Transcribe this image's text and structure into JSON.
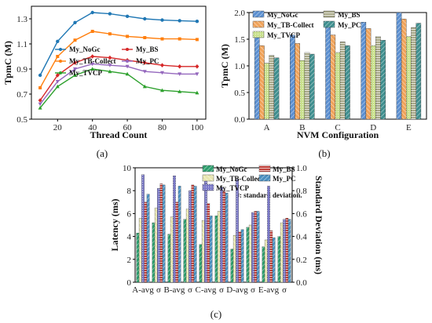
{
  "chart_data": [
    {
      "id": "a",
      "type": "line",
      "caption": "(a)",
      "xlabel": "Thread Count",
      "ylabel": "TpmC (M)",
      "ylim": [
        0.5,
        1.4
      ],
      "yticks": [
        "0.5",
        "0.7",
        "0.9",
        "1.1",
        "1.3"
      ],
      "xticks": [
        "20",
        "40",
        "60",
        "80",
        "100"
      ],
      "x": [
        10,
        20,
        30,
        40,
        50,
        60,
        70,
        80,
        90,
        100
      ],
      "series": [
        {
          "name": "My_NoGc",
          "color": "#1f77b4",
          "marker": "circle",
          "values": [
            0.85,
            1.12,
            1.27,
            1.35,
            1.34,
            1.32,
            1.3,
            1.29,
            1.285,
            1.28
          ]
        },
        {
          "name": "My_TB-Collect",
          "color": "#ff7f0e",
          "marker": "square",
          "values": [
            0.75,
            1.0,
            1.13,
            1.2,
            1.18,
            1.16,
            1.15,
            1.14,
            1.14,
            1.135
          ]
        },
        {
          "name": "My_TVCP",
          "color": "#2ca02c",
          "marker": "triangle",
          "values": [
            0.59,
            0.76,
            0.85,
            0.9,
            0.88,
            0.86,
            0.76,
            0.73,
            0.72,
            0.71
          ]
        },
        {
          "name": "My_BS",
          "color": "#d62728",
          "marker": "diamond",
          "values": [
            0.65,
            0.85,
            0.95,
            1.0,
            0.99,
            0.97,
            0.95,
            0.93,
            0.92,
            0.92
          ]
        },
        {
          "name": "My_PC",
          "color": "#9467bd",
          "marker": "triangle-down",
          "values": [
            0.62,
            0.8,
            0.9,
            0.94,
            0.93,
            0.92,
            0.88,
            0.87,
            0.86,
            0.86
          ]
        }
      ]
    },
    {
      "id": "b",
      "type": "bar",
      "caption": "(b)",
      "xlabel": "NVM Configuration",
      "ylabel": "TpmC (M)",
      "ylim": [
        0.0,
        2.0
      ],
      "yticks": [
        "0.0",
        "0.5",
        "1.0",
        "1.5",
        "2.0"
      ],
      "categories": [
        "A",
        "B",
        "C",
        "D",
        "E"
      ],
      "series": [
        {
          "name": "My_NoGc",
          "color": "#5b8fd0",
          "values": [
            1.55,
            1.58,
            1.78,
            1.82,
            2.08
          ]
        },
        {
          "name": "My_TB-Collect",
          "color": "#f0a35a",
          "values": [
            1.38,
            1.42,
            1.58,
            1.7,
            1.88
          ]
        },
        {
          "name": "My_TVCP",
          "color": "#c8e08c",
          "values": [
            1.05,
            1.1,
            1.25,
            1.38,
            1.55
          ]
        },
        {
          "name": "My_BS",
          "color": "#a8a888",
          "values": [
            1.2,
            1.25,
            1.45,
            1.55,
            1.72
          ]
        },
        {
          "name": "My_PC",
          "color": "#3f8f8f",
          "values": [
            1.15,
            1.22,
            1.38,
            1.48,
            1.8
          ]
        }
      ]
    },
    {
      "id": "c",
      "type": "bar",
      "caption": "(c)",
      "ylabel": "Latency (ms)",
      "ylabel_right": "Standard Deviation (ms)",
      "ylim": [
        0,
        10
      ],
      "ylim_right": [
        0.0,
        1.0
      ],
      "yticks": [
        "0",
        "2",
        "4",
        "6",
        "8",
        "10"
      ],
      "yticks_right": [
        "0.0",
        "0.2",
        "0.4",
        "0.6",
        "0.8",
        "1.0"
      ],
      "categories": [
        "A-avg",
        "σ",
        "B-avg",
        "σ",
        "C-avg",
        "σ",
        "D-avg",
        "σ",
        "E-avg",
        "σ"
      ],
      "note": "σ: standard deviation.",
      "series": [
        {
          "name": "My_NoGc",
          "color": "#2e9e6e",
          "values": [
            4.3,
            0.52,
            4.2,
            0.55,
            3.3,
            0.58,
            2.9,
            0.48,
            3.1,
            0.4
          ]
        },
        {
          "name": "My_TB-Collect",
          "color": "#e8e6b0",
          "values": [
            5.6,
            0.65,
            5.7,
            0.64,
            5.4,
            0.62,
            4.1,
            0.5,
            3.7,
            0.52
          ]
        },
        {
          "name": "My_TVCP",
          "color": "#7a78c8",
          "values": [
            9.4,
            0.82,
            9.3,
            0.8,
            9.2,
            0.83,
            9.0,
            0.61,
            8.4,
            0.55
          ]
        },
        {
          "name": "My_BS",
          "color": "#c0403a",
          "values": [
            7.0,
            0.86,
            7.0,
            0.85,
            6.9,
            0.8,
            4.4,
            0.62,
            4.5,
            0.56
          ]
        },
        {
          "name": "My_PC",
          "color": "#4a8fc0",
          "values": [
            7.7,
            0.85,
            8.4,
            0.84,
            5.8,
            0.78,
            4.6,
            0.62,
            3.9,
            0.55
          ]
        }
      ]
    }
  ]
}
